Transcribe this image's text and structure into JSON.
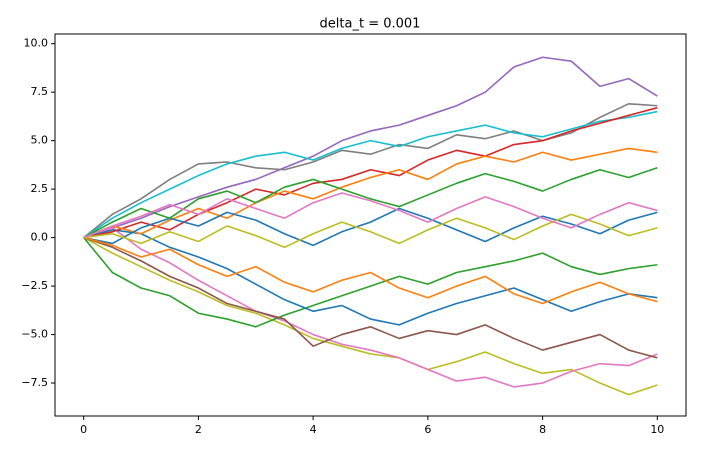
{
  "chart_data": {
    "type": "line",
    "title": "delta_t = 0.001",
    "x": [
      0,
      0.5,
      1,
      1.5,
      2,
      2.5,
      3,
      3.5,
      4,
      4.5,
      5,
      5.5,
      6,
      6.5,
      7,
      7.5,
      8,
      8.5,
      9,
      9.5,
      10
    ],
    "xlim": [
      -0.5,
      10.5
    ],
    "xticks": [
      0,
      2,
      4,
      6,
      8,
      10
    ],
    "ylim": [
      -9.2,
      10.5
    ],
    "yticks": [
      {
        "value": -7.5,
        "label": "−7.5"
      },
      {
        "value": -5,
        "label": "−5.0"
      },
      {
        "value": -2.5,
        "label": "−2.5"
      },
      {
        "value": 0,
        "label": "0.0"
      },
      2.5,
      {
        "value": 5,
        "label": "5.0"
      },
      7.5,
      {
        "value": 10,
        "label": "10.0"
      }
    ],
    "series": [
      {
        "color": "#9467bd",
        "values": [
          0,
          0.5,
          1.0,
          1.6,
          2.1,
          2.6,
          3.0,
          3.6,
          4.2,
          5.0,
          5.5,
          5.8,
          6.3,
          6.8,
          7.5,
          8.8,
          9.3,
          9.1,
          7.8,
          8.2,
          7.3
        ]
      },
      {
        "color": "#7f7f7f",
        "values": [
          0,
          1.2,
          2.0,
          3.0,
          3.8,
          3.9,
          3.6,
          3.5,
          3.9,
          4.5,
          4.3,
          4.8,
          4.6,
          5.3,
          5.1,
          5.5,
          5.0,
          5.4,
          6.2,
          6.9,
          6.8
        ]
      },
      {
        "color": "#bcbd22",
        "values": [
          0,
          -0.8,
          -1.5,
          -2.2,
          -2.8,
          -3.5,
          -3.9,
          -4.5,
          -5.2,
          -5.6,
          -6.0,
          -6.2,
          -6.8,
          -6.4,
          -5.9,
          -6.5,
          -7.0,
          -6.8,
          -7.5,
          -8.1,
          -7.6
        ]
      },
      {
        "color": "#e377c2",
        "values": [
          0,
          0.5,
          -0.6,
          -1.3,
          -2.2,
          -3.0,
          -3.8,
          -4.3,
          -5.0,
          -5.5,
          -5.8,
          -6.2,
          -6.8,
          -7.4,
          -7.2,
          -7.7,
          -7.5,
          -6.9,
          -6.5,
          -6.6,
          -6.0
        ]
      },
      {
        "color": "#2ca02c",
        "values": [
          0,
          -1.8,
          -2.6,
          -3.0,
          -3.9,
          -4.2,
          -4.6,
          -4.0,
          -3.5,
          -3.0,
          -2.5,
          -2.0,
          -2.4,
          -1.8,
          -1.5,
          -1.2,
          -0.8,
          -1.5,
          -1.9,
          -1.6,
          -1.4
        ]
      },
      {
        "color": "#1f77b4",
        "values": [
          0,
          0.4,
          0.2,
          -0.5,
          -1.0,
          -1.6,
          -2.4,
          -3.2,
          -3.8,
          -3.5,
          -4.2,
          -4.5,
          -3.9,
          -3.4,
          -3.0,
          -2.6,
          -3.2,
          -3.8,
          -3.3,
          -2.9,
          -3.1
        ]
      },
      {
        "color": "#17becf",
        "values": [
          0,
          1.0,
          1.8,
          2.5,
          3.2,
          3.8,
          4.2,
          4.4,
          4.0,
          4.6,
          5.0,
          4.7,
          5.2,
          5.5,
          5.8,
          5.4,
          5.2,
          5.6,
          6.0,
          6.2,
          6.5
        ]
      },
      {
        "color": "#d62728",
        "values": [
          0,
          0.3,
          0.8,
          0.4,
          1.2,
          1.8,
          2.5,
          2.2,
          2.8,
          3.0,
          3.5,
          3.2,
          4.0,
          4.5,
          4.2,
          4.8,
          5.0,
          5.5,
          5.9,
          6.3,
          6.7
        ]
      },
      {
        "color": "#8c564b",
        "values": [
          0,
          -0.5,
          -1.2,
          -2.0,
          -2.6,
          -3.4,
          -3.8,
          -4.2,
          -5.6,
          -5.0,
          -4.6,
          -5.2,
          -4.8,
          -5.0,
          -4.5,
          -5.2,
          -5.8,
          -5.4,
          -5.0,
          -5.8,
          -6.2
        ]
      },
      {
        "color": "#ff7f0e",
        "values": [
          0,
          0.6,
          0.2,
          0.9,
          1.5,
          1.0,
          1.8,
          2.4,
          2.0,
          2.6,
          3.1,
          3.5,
          3.0,
          3.8,
          4.2,
          3.9,
          4.4,
          4.0,
          4.3,
          4.6,
          4.4
        ]
      },
      {
        "color": "#1f77b4",
        "values": [
          0,
          -0.3,
          0.5,
          1.0,
          0.6,
          1.3,
          0.9,
          0.2,
          -0.4,
          0.3,
          0.8,
          1.5,
          1.0,
          0.4,
          -0.2,
          0.5,
          1.1,
          0.7,
          0.2,
          0.9,
          1.3
        ]
      },
      {
        "color": "#2ca02c",
        "values": [
          0,
          0.8,
          1.5,
          1.0,
          2.0,
          2.4,
          1.8,
          2.6,
          3.0,
          2.5,
          2.0,
          1.6,
          2.2,
          2.8,
          3.3,
          2.9,
          2.4,
          3.0,
          3.5,
          3.1,
          3.6
        ]
      },
      {
        "color": "#ff7f0e",
        "values": [
          0,
          -0.4,
          -1.0,
          -0.6,
          -1.4,
          -2.0,
          -1.5,
          -2.3,
          -2.8,
          -2.2,
          -1.8,
          -2.6,
          -3.1,
          -2.5,
          -2.0,
          -2.9,
          -3.4,
          -2.8,
          -2.3,
          -2.9,
          -3.3
        ]
      },
      {
        "color": "#bcbd22",
        "values": [
          0,
          0.2,
          -0.3,
          0.3,
          -0.2,
          0.6,
          0.1,
          -0.5,
          0.2,
          0.8,
          0.3,
          -0.3,
          0.4,
          1.0,
          0.5,
          -0.1,
          0.6,
          1.2,
          0.7,
          0.1,
          0.5
        ]
      },
      {
        "color": "#e377c2",
        "values": [
          0,
          0.6,
          1.1,
          1.7,
          1.2,
          2.0,
          1.5,
          1.0,
          1.8,
          2.3,
          1.9,
          1.4,
          0.8,
          1.5,
          2.1,
          1.6,
          1.0,
          0.5,
          1.2,
          1.8,
          1.4
        ]
      }
    ]
  }
}
